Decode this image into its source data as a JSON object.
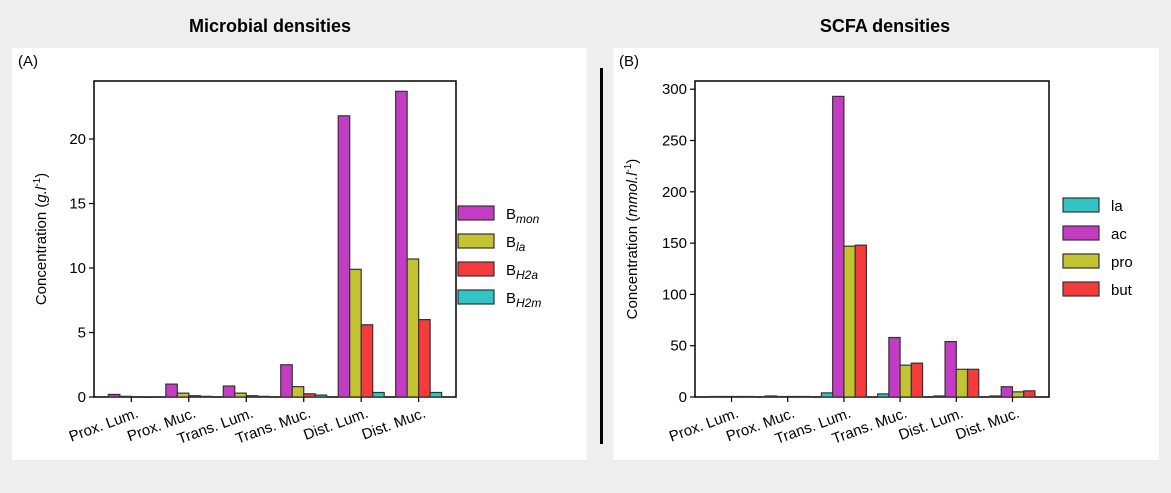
{
  "panels": {
    "left_title": "Microbial densities",
    "right_title": "SCFA densities"
  },
  "chart_data": [
    {
      "type": "bar",
      "panel_label": "(A)",
      "ylabel": "Concentration (g.l⁻¹)",
      "ylabel_main": "Concentration (",
      "ylabel_unit": "g.l",
      "ylabel_sup": "-1",
      "ylabel_close": ")",
      "ylim": [
        0,
        24.5
      ],
      "yticks": [
        0,
        5,
        10,
        15,
        20
      ],
      "categories": [
        "Prox. Lum.",
        "Prox. Muc.",
        "Trans. Lum.",
        "Trans. Muc.",
        "Dist. Lum.",
        "Dist. Muc."
      ],
      "legend_position": "right",
      "series": [
        {
          "name": "B_mon",
          "label_main": "B",
          "label_sub": "mon",
          "color": "#c43bc4",
          "values": [
            0.2,
            1.0,
            0.85,
            2.5,
            21.8,
            23.7
          ]
        },
        {
          "name": "B_la",
          "label_main": "B",
          "label_sub": "la",
          "color": "#c4c433",
          "values": [
            0.05,
            0.3,
            0.3,
            0.8,
            9.9,
            10.7
          ]
        },
        {
          "name": "B_H2a",
          "label_main": "B",
          "label_sub": "H2a",
          "color": "#f53b3b",
          "values": [
            0.02,
            0.1,
            0.1,
            0.25,
            5.6,
            6.0
          ]
        },
        {
          "name": "B_H2m",
          "label_main": "B",
          "label_sub": "H2m",
          "color": "#33c4c4",
          "values": [
            0.01,
            0.05,
            0.05,
            0.15,
            0.35,
            0.35
          ]
        }
      ]
    },
    {
      "type": "bar",
      "panel_label": "(B)",
      "ylabel": "Concentration (mmol.l⁻¹)",
      "ylabel_main": "Concentration (",
      "ylabel_unit": "mmol.l",
      "ylabel_sup": "-1",
      "ylabel_close": ")",
      "ylim": [
        0,
        308
      ],
      "yticks": [
        0,
        50,
        100,
        150,
        200,
        250,
        300
      ],
      "categories": [
        "Prox. Lum.",
        "Prox. Muc.",
        "Trans. Lum.",
        "Trans. Muc.",
        "Dist. Lum.",
        "Dist. Muc."
      ],
      "legend_position": "right",
      "series": [
        {
          "name": "la",
          "label_main": "la",
          "label_sub": "",
          "color": "#33c4c4",
          "values": [
            0.5,
            1.0,
            4,
            3,
            1,
            1
          ]
        },
        {
          "name": "ac",
          "label_main": "ac",
          "label_sub": "",
          "color": "#c43bc4",
          "values": [
            0.5,
            0.5,
            293,
            58,
            54,
            10
          ]
        },
        {
          "name": "pro",
          "label_main": "pro",
          "label_sub": "",
          "color": "#c4c433",
          "values": [
            0.5,
            0.5,
            147,
            31,
            27,
            5
          ]
        },
        {
          "name": "but",
          "label_main": "but",
          "label_sub": "",
          "color": "#f53b3b",
          "values": [
            0.5,
            0.5,
            148,
            33,
            27,
            6
          ]
        }
      ]
    }
  ]
}
